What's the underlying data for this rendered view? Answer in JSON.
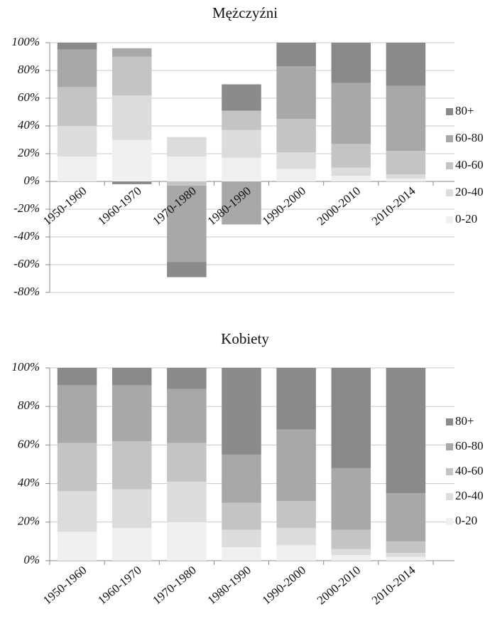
{
  "chart_data": [
    {
      "type": "bar",
      "stacked": true,
      "title": "Mężczyźni",
      "categories": [
        "1950-1960",
        "1960-1970",
        "1970-1980",
        "1980-1990",
        "1990-2000",
        "2000-2010",
        "2010-2014"
      ],
      "series": [
        {
          "name": "0-20",
          "color": "#f0f0f0",
          "values": [
            18,
            30,
            18,
            17,
            9,
            4,
            2
          ]
        },
        {
          "name": "20-40",
          "color": "#dcdcdc",
          "values": [
            22,
            32,
            14,
            20,
            12,
            6,
            3
          ]
        },
        {
          "name": "40-60",
          "color": "#c4c4c4",
          "values": [
            28,
            28,
            -3,
            14,
            24,
            17,
            17
          ]
        },
        {
          "name": "60-80",
          "color": "#a8a8a8",
          "values": [
            27,
            6,
            -55,
            -31,
            38,
            44,
            47
          ]
        },
        {
          "name": "80+",
          "color": "#8a8a8a",
          "values": [
            5,
            -2,
            -11,
            19,
            17,
            29,
            31
          ]
        }
      ],
      "ylim": [
        -80,
        100
      ],
      "yticks": [
        {
          "value": -80,
          "label": "-80%"
        },
        {
          "value": -60,
          "label": "-60%"
        },
        {
          "value": -40,
          "label": "-40%"
        },
        {
          "value": -20,
          "label": "-20%"
        },
        {
          "value": 0,
          "label": "0%"
        },
        {
          "value": 20,
          "label": "20%"
        },
        {
          "value": 40,
          "label": "40%"
        },
        {
          "value": 60,
          "label": "60%"
        },
        {
          "value": 80,
          "label": "80%"
        },
        {
          "value": 100,
          "label": "100%"
        }
      ],
      "grid": true,
      "legend": "right"
    },
    {
      "type": "bar",
      "stacked": true,
      "title": "Kobiety",
      "categories": [
        "1950-1960",
        "1960-1970",
        "1970-1980",
        "1980-1990",
        "1990-2000",
        "2000-2010",
        "2010-2014"
      ],
      "series": [
        {
          "name": "0-20",
          "color": "#f0f0f0",
          "values": [
            15,
            17,
            20,
            7,
            8,
            3,
            2
          ]
        },
        {
          "name": "20-40",
          "color": "#dcdcdc",
          "values": [
            21,
            20,
            21,
            9,
            9,
            3,
            2
          ]
        },
        {
          "name": "40-60",
          "color": "#c4c4c4",
          "values": [
            25,
            25,
            20,
            14,
            14,
            10,
            6
          ]
        },
        {
          "name": "60-80",
          "color": "#a8a8a8",
          "values": [
            30,
            29,
            28,
            25,
            37,
            32,
            25
          ]
        },
        {
          "name": "80+",
          "color": "#8a8a8a",
          "values": [
            9,
            9,
            11,
            45,
            32,
            52,
            65
          ]
        }
      ],
      "ylim": [
        0,
        100
      ],
      "yticks": [
        {
          "value": 0,
          "label": "0%"
        },
        {
          "value": 20,
          "label": "20%"
        },
        {
          "value": 40,
          "label": "40%"
        },
        {
          "value": 60,
          "label": "60%"
        },
        {
          "value": 80,
          "label": "80%"
        },
        {
          "value": 100,
          "label": "100%"
        }
      ],
      "grid": true,
      "legend": "right"
    }
  ]
}
